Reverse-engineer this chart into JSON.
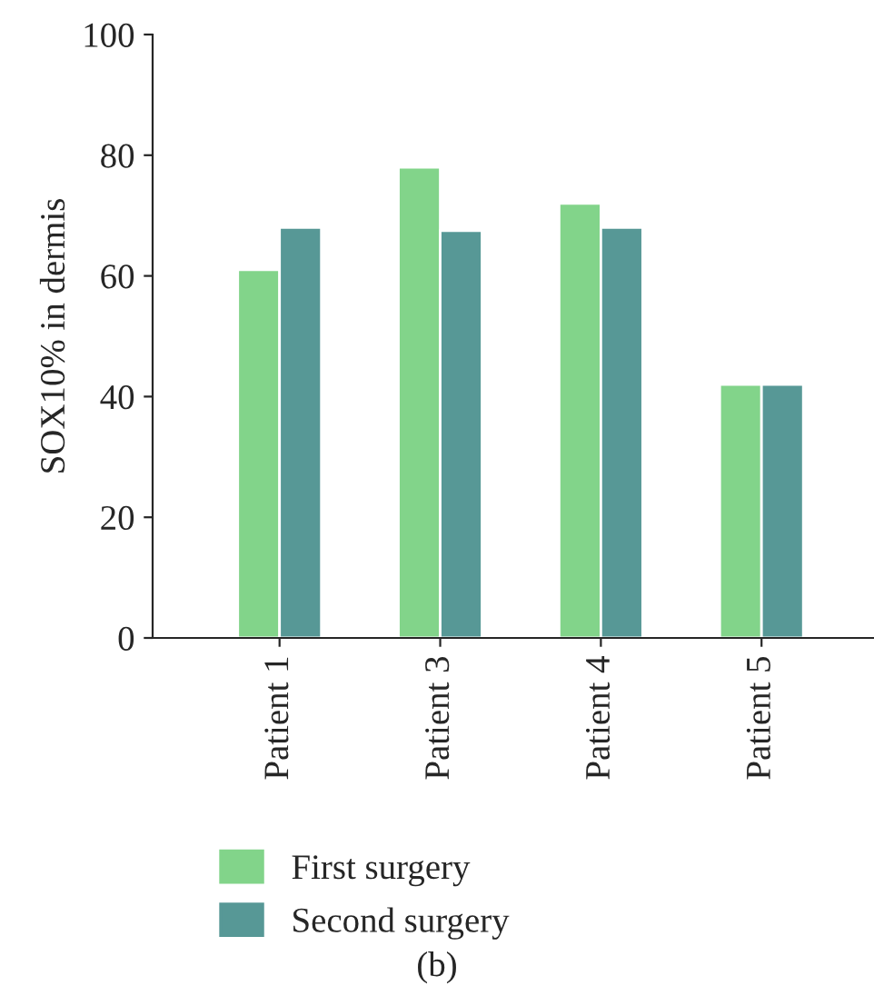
{
  "chart_data": {
    "type": "bar",
    "ylabel": "SOX10% in dermis",
    "categories": [
      "Patient 1",
      "Patient 3",
      "Patient 4",
      "Patient 5"
    ],
    "series": [
      {
        "name": "First surgery",
        "color": "#82d48a",
        "values": [
          61,
          78,
          72,
          42
        ]
      },
      {
        "name": "Second surgery",
        "color": "#579896",
        "values": [
          68,
          67.5,
          68,
          42
        ]
      }
    ],
    "ylim": [
      0,
      100
    ],
    "yticks": [
      0,
      20,
      40,
      60,
      80,
      100
    ],
    "grid": false,
    "legend": "bottom left",
    "annotations": [
      "(b)"
    ]
  }
}
